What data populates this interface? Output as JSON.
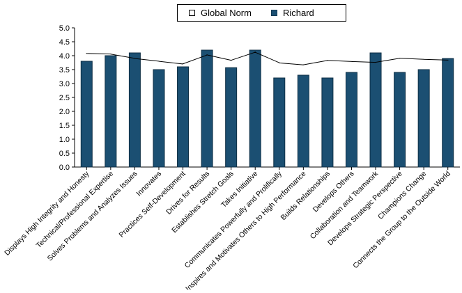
{
  "chart_data": {
    "type": "bar",
    "title": "",
    "xlabel": "",
    "ylabel": "",
    "ylim": [
      0,
      5
    ],
    "yticks": [
      "0.0",
      "0.5",
      "1.0",
      "1.5",
      "2.0",
      "2.5",
      "3.0",
      "3.5",
      "4.0",
      "4.5",
      "5.0"
    ],
    "categories": [
      "Displays High Integrity and Honesty",
      "Technical/Professional Expertise",
      "Solves Problems and Analyzes Issues",
      "Innovates",
      "Practices Self-Development",
      "Drives for Results",
      "Establishes Stretch Goals",
      "Takes Initiative",
      "Communicates Powerfully and Prolifically",
      "Inspires and Motivates Others to High Performance",
      "Builds Relationships",
      "Develops Others",
      "Collaboration and Teamwork",
      "Develops Strategic Perspective",
      "Champions Change",
      "Connects the Group to the Outside World"
    ],
    "series": [
      {
        "name": "Global Norm",
        "kind": "line",
        "color": "#000000",
        "values": [
          4.08,
          4.06,
          3.9,
          3.8,
          3.7,
          4.03,
          3.83,
          4.13,
          3.74,
          3.67,
          3.83,
          3.79,
          3.76,
          3.91,
          3.87,
          3.84
        ]
      },
      {
        "name": "Richard",
        "kind": "bar",
        "color": "#1b4f72",
        "values": [
          3.8,
          4.0,
          4.1,
          3.5,
          3.6,
          4.2,
          3.57,
          4.2,
          3.2,
          3.3,
          3.2,
          3.4,
          4.1,
          3.4,
          3.5,
          3.9
        ]
      }
    ],
    "grid": false,
    "legend": "top-center"
  },
  "legend": {
    "norm_label": "Global Norm",
    "richard_label": "Richard"
  }
}
